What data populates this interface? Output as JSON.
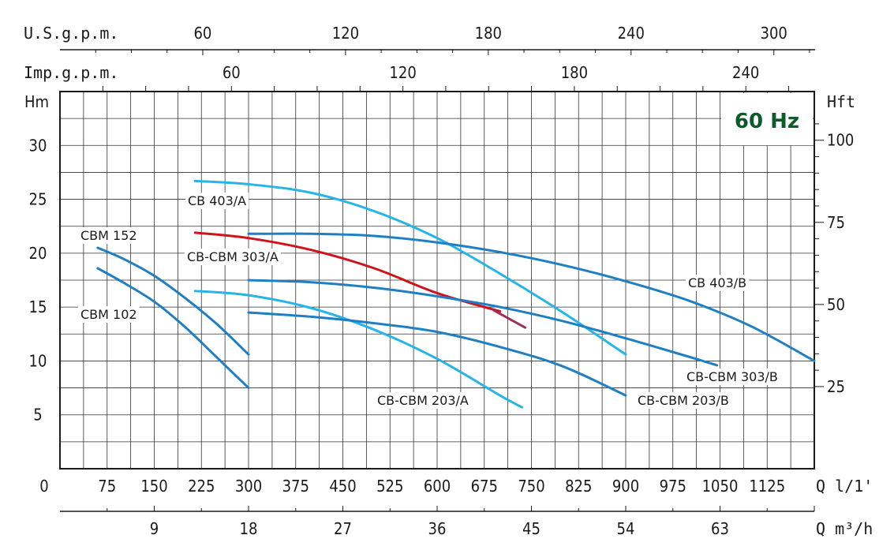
{
  "chart_data": {
    "type": "line",
    "badge": "60 Hz",
    "axes": {
      "x_primary": {
        "unit_label": "Q l/1'",
        "ticks": [
          0,
          75,
          150,
          225,
          300,
          375,
          450,
          525,
          600,
          675,
          750,
          825,
          900,
          975,
          1050,
          1125
        ],
        "range": [
          0,
          1200
        ]
      },
      "x_m3h": {
        "unit_label": "Q m³/h",
        "ticks": [
          9,
          18,
          27,
          36,
          45,
          54,
          63
        ]
      },
      "x_usgpm": {
        "unit_label": "U.S.g.p.m.",
        "ticks": [
          60,
          120,
          180,
          240,
          300
        ]
      },
      "x_impgpm": {
        "unit_label": "Imp.g.p.m.",
        "ticks": [
          60,
          120,
          180,
          240
        ]
      },
      "y_left": {
        "unit_label": "Hm",
        "ticks": [
          5,
          10,
          15,
          20,
          25,
          30
        ],
        "range": [
          0,
          35
        ]
      },
      "y_right": {
        "unit_label": "Hft",
        "ticks": [
          25,
          50,
          75,
          100
        ]
      }
    },
    "grid": true,
    "series": [
      {
        "name": "CBM 152",
        "label": "CBM 152",
        "color": "#1f7fc4",
        "x": [
          60,
          100,
          150,
          200,
          250,
          300
        ],
        "y": [
          20.5,
          19.5,
          17.9,
          15.8,
          13.4,
          10.6
        ]
      },
      {
        "name": "CBM 102",
        "label": "CBM 102",
        "color": "#1f7fc4",
        "x": [
          60,
          100,
          150,
          200,
          250,
          300
        ],
        "y": [
          18.6,
          17.3,
          15.5,
          13.1,
          10.3,
          7.5
        ]
      },
      {
        "name": "CB 403/A",
        "label": "CB 403/A",
        "color": "#26b5e8",
        "x": [
          215,
          300,
          400,
          500,
          600,
          700,
          800,
          900
        ],
        "y": [
          26.7,
          26.4,
          25.6,
          23.9,
          21.4,
          18.1,
          14.5,
          10.6
        ]
      },
      {
        "name": "CB-CBM 303/A",
        "label": "CB-CBM 303/A",
        "color": "#d0121b",
        "x": [
          215,
          300,
          400,
          500,
          600,
          700
        ],
        "y": [
          21.9,
          21.4,
          20.3,
          18.6,
          16.3,
          14.6
        ]
      },
      {
        "name": "CB-CBM 303/A tail",
        "label": "",
        "color": "#9a3060",
        "x": [
          690,
          740
        ],
        "y": [
          14.7,
          13.1
        ]
      },
      {
        "name": "CB 403/B",
        "label": "CB 403/B",
        "color": "#1f7fc4",
        "x": [
          300,
          400,
          500,
          600,
          700,
          800,
          900,
          1000,
          1100,
          1200
        ],
        "y": [
          21.8,
          21.8,
          21.6,
          21.0,
          20.1,
          18.9,
          17.4,
          15.6,
          13.2,
          10.0
        ]
      },
      {
        "name": "CB-CBM 303/B",
        "label": "CB-CBM 303/B",
        "color": "#1f7fc4",
        "x": [
          300,
          400,
          500,
          600,
          700,
          800,
          900,
          1000,
          1045
        ],
        "y": [
          17.5,
          17.3,
          16.8,
          16.0,
          15.0,
          13.7,
          12.1,
          10.4,
          9.6
        ]
      },
      {
        "name": "CB-CBM 203/A",
        "label": "CB-CBM 203/A",
        "color": "#26b5e8",
        "x": [
          215,
          300,
          400,
          500,
          600,
          700,
          735
        ],
        "y": [
          16.5,
          16.1,
          14.9,
          12.9,
          10.2,
          6.8,
          5.7
        ]
      },
      {
        "name": "CB-CBM 203/B",
        "label": "CB-CBM 203/B",
        "color": "#1f7fc4",
        "x": [
          300,
          400,
          500,
          600,
          700,
          800,
          900
        ],
        "y": [
          14.5,
          14.1,
          13.5,
          12.7,
          11.3,
          9.5,
          6.8
        ]
      }
    ]
  }
}
